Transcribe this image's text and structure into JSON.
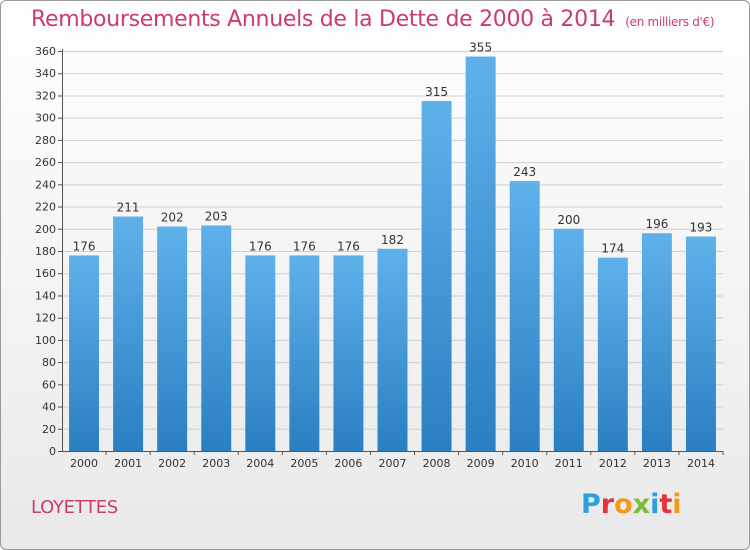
{
  "chart": {
    "title": "Remboursements Annuels de la Dette de 2000 à 2014",
    "unit_note": "(en milliers d'€)",
    "commune": "LOYETTES",
    "logo": {
      "letters": [
        "P",
        "r",
        "o",
        "x",
        "i",
        "t",
        "i"
      ],
      "colors": [
        "#2aa1d8",
        "#e7323a",
        "#f39a1b",
        "#7bbd3a",
        "#2aa1d8",
        "#e7323a",
        "#f39a1b"
      ]
    },
    "bar_color_top": "#5fb1ea",
    "bar_color_bottom": "#2a7fc2"
  },
  "chart_data": {
    "type": "bar",
    "title": "Remboursements Annuels de la Dette de 2000 à 2014",
    "ylabel": "",
    "xlabel": "",
    "categories": [
      "2000",
      "2001",
      "2002",
      "2003",
      "2004",
      "2005",
      "2006",
      "2007",
      "2008",
      "2009",
      "2010",
      "2011",
      "2012",
      "2013",
      "2014"
    ],
    "values": [
      176,
      211,
      202,
      203,
      176,
      176,
      176,
      182,
      315,
      355,
      243,
      200,
      174,
      196,
      193
    ],
    "ylim": [
      0,
      360
    ],
    "yticks": [
      0,
      20,
      40,
      60,
      80,
      100,
      120,
      140,
      160,
      180,
      200,
      220,
      240,
      260,
      280,
      300,
      320,
      340,
      360
    ],
    "grid": true,
    "legend": "none"
  }
}
